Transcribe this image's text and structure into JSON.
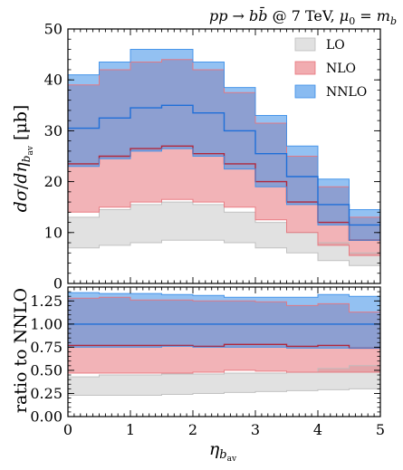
{
  "chart_data": [
    {
      "type": "area",
      "panel": "main",
      "title": "pp → bb̄ @ 7 TeV, μ₀ = m_b",
      "xlabel": "η_bav",
      "ylabel": "dσ/dη_bav [μb]",
      "xlim": [
        0,
        5
      ],
      "ylim": [
        0,
        50
      ],
      "x_bin_edges": [
        0,
        0.5,
        1,
        1.5,
        2,
        2.5,
        3,
        3.5,
        4,
        4.5,
        5
      ],
      "x_ticks": [
        "0",
        "1",
        "2",
        "3",
        "4",
        "5"
      ],
      "y_ticks": [
        "0",
        "10",
        "20",
        "30",
        "40",
        "50"
      ],
      "legend": {
        "position": "top-right"
      },
      "series": [
        {
          "name": "LO",
          "color": "#bdbdbd",
          "lower": [
            7.0,
            7.5,
            8.0,
            8.5,
            8.5,
            8.0,
            7.0,
            6.0,
            4.5,
            3.5
          ],
          "upper": [
            13.0,
            14.5,
            15.5,
            16.0,
            15.5,
            14.0,
            12.0,
            10.0,
            8.0,
            6.0
          ]
        },
        {
          "name": "NLO",
          "color": "#e8747c",
          "central": [
            23.5,
            25.0,
            26.5,
            27.0,
            25.5,
            23.5,
            20.0,
            16.0,
            12.0,
            8.5
          ],
          "lower": [
            14.0,
            15.0,
            16.0,
            16.5,
            16.0,
            15.0,
            12.5,
            10.0,
            7.5,
            5.5
          ],
          "upper": [
            39.0,
            42.0,
            43.5,
            44.0,
            42.0,
            37.5,
            31.5,
            25.0,
            19.0,
            13.0
          ]
        },
        {
          "name": "NNLO",
          "color": "#3b8ee8",
          "central": [
            30.5,
            32.5,
            34.5,
            35.0,
            33.5,
            30.0,
            25.5,
            21.0,
            15.5,
            11.5
          ],
          "lower": [
            23.0,
            24.5,
            26.0,
            26.5,
            25.0,
            22.5,
            19.0,
            15.5,
            11.5,
            8.5
          ],
          "upper": [
            41.0,
            43.5,
            46.0,
            46.0,
            43.5,
            38.5,
            33.0,
            27.0,
            20.5,
            14.5
          ]
        }
      ]
    },
    {
      "type": "area",
      "panel": "ratio",
      "xlabel": "η_bav",
      "ylabel": "ratio to NNLO",
      "xlim": [
        0,
        5
      ],
      "ylim": [
        0,
        1.4
      ],
      "x_bin_edges": [
        0,
        0.5,
        1,
        1.5,
        2,
        2.5,
        3,
        3.5,
        4,
        4.5,
        5
      ],
      "x_ticks": [
        "0",
        "1",
        "2",
        "3",
        "4",
        "5"
      ],
      "y_ticks": [
        "0.00",
        "0.25",
        "0.50",
        "0.75",
        "1.00",
        "1.25"
      ],
      "series": [
        {
          "name": "LO",
          "color": "#bdbdbd",
          "lower": [
            0.23,
            0.23,
            0.23,
            0.24,
            0.25,
            0.26,
            0.27,
            0.28,
            0.29,
            0.3
          ],
          "upper": [
            0.43,
            0.45,
            0.45,
            0.46,
            0.46,
            0.47,
            0.47,
            0.48,
            0.52,
            0.55
          ]
        },
        {
          "name": "NLO",
          "color": "#e8747c",
          "central": [
            0.77,
            0.77,
            0.77,
            0.77,
            0.76,
            0.78,
            0.78,
            0.76,
            0.77,
            0.74
          ],
          "lower": [
            0.47,
            0.47,
            0.47,
            0.47,
            0.48,
            0.5,
            0.49,
            0.48,
            0.48,
            0.48
          ],
          "upper": [
            1.28,
            1.29,
            1.26,
            1.26,
            1.25,
            1.25,
            1.24,
            1.2,
            1.22,
            1.13
          ]
        },
        {
          "name": "NNLO",
          "color": "#3b8ee8",
          "central": [
            1.0,
            1.0,
            1.0,
            1.0,
            1.0,
            1.0,
            1.0,
            1.0,
            1.0,
            1.0
          ],
          "lower": [
            0.75,
            0.75,
            0.75,
            0.76,
            0.75,
            0.75,
            0.75,
            0.74,
            0.74,
            0.74
          ],
          "upper": [
            1.34,
            1.33,
            1.33,
            1.32,
            1.31,
            1.29,
            1.29,
            1.29,
            1.32,
            1.3
          ]
        }
      ]
    }
  ]
}
